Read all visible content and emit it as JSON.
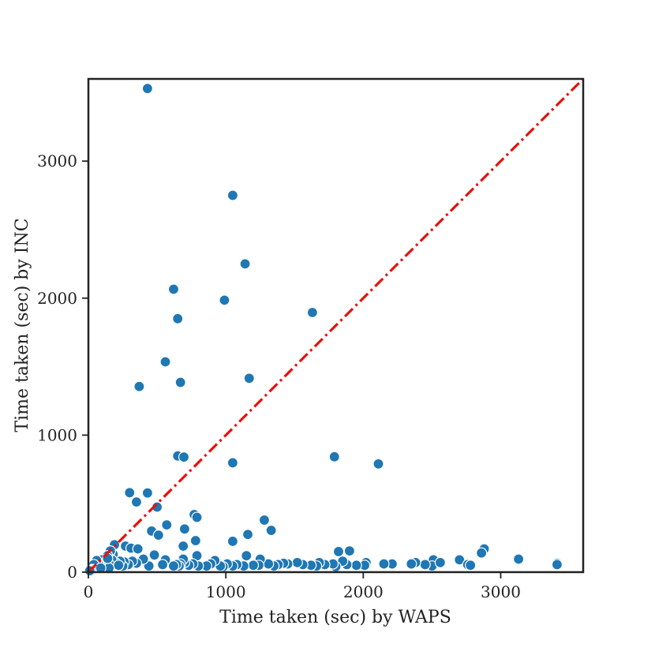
{
  "chart_data": {
    "type": "scatter",
    "title": "",
    "xlabel": "Time taken (sec) by WAPS",
    "ylabel": "Time taken (sec) by INC",
    "xlim": [
      0,
      3600
    ],
    "ylim": [
      0,
      3600
    ],
    "x_ticks": [
      0,
      1000,
      2000,
      3000
    ],
    "y_ticks": [
      0,
      1000,
      2000,
      3000
    ],
    "x_tick_labels": [
      "0",
      "1000",
      "2000",
      "3000"
    ],
    "y_tick_labels": [
      "0",
      "1000",
      "2000",
      "3000"
    ],
    "grid": false,
    "legend": "none",
    "reference_line": {
      "type": "y=x",
      "color": "#e8110b",
      "style": "dash-dot"
    },
    "point_color": "#1f77b4",
    "points": [
      [
        430,
        3530
      ],
      [
        1050,
        2750
      ],
      [
        1140,
        2250
      ],
      [
        620,
        2065
      ],
      [
        990,
        1985
      ],
      [
        650,
        1850
      ],
      [
        1630,
        1895
      ],
      [
        560,
        1535
      ],
      [
        1170,
        1415
      ],
      [
        670,
        1385
      ],
      [
        370,
        1355
      ],
      [
        650,
        848
      ],
      [
        695,
        840
      ],
      [
        1050,
        798
      ],
      [
        1790,
        842
      ],
      [
        2110,
        790
      ],
      [
        300,
        580
      ],
      [
        430,
        578
      ],
      [
        350,
        512
      ],
      [
        500,
        475
      ],
      [
        770,
        420
      ],
      [
        790,
        400
      ],
      [
        570,
        345
      ],
      [
        700,
        315
      ],
      [
        460,
        300
      ],
      [
        510,
        270
      ],
      [
        1280,
        380
      ],
      [
        1330,
        305
      ],
      [
        1160,
        275
      ],
      [
        1050,
        225
      ],
      [
        690,
        190
      ],
      [
        780,
        230
      ],
      [
        270,
        190
      ],
      [
        310,
        175
      ],
      [
        360,
        170
      ],
      [
        2880,
        170
      ],
      [
        2860,
        140
      ],
      [
        1820,
        150
      ],
      [
        1900,
        155
      ],
      [
        3130,
        95
      ],
      [
        3410,
        65
      ],
      [
        3410,
        55
      ],
      [
        2700,
        90
      ],
      [
        2760,
        55
      ],
      [
        2780,
        50
      ],
      [
        2510,
        90
      ],
      [
        2500,
        45
      ],
      [
        2560,
        70
      ],
      [
        2450,
        55
      ],
      [
        2380,
        70
      ],
      [
        2350,
        60
      ],
      [
        2210,
        60
      ],
      [
        2150,
        60
      ],
      [
        2020,
        70
      ],
      [
        2010,
        50
      ],
      [
        1950,
        50
      ],
      [
        1880,
        55
      ],
      [
        1850,
        80
      ],
      [
        1800,
        40
      ],
      [
        1780,
        60
      ],
      [
        1720,
        55
      ],
      [
        1680,
        70
      ],
      [
        1660,
        45
      ],
      [
        1620,
        50
      ],
      [
        1560,
        55
      ],
      [
        1520,
        70
      ],
      [
        1450,
        60
      ],
      [
        1420,
        65
      ],
      [
        1380,
        55
      ],
      [
        1350,
        45
      ],
      [
        1310,
        60
      ],
      [
        1250,
        95
      ],
      [
        1240,
        50
      ],
      [
        1200,
        50
      ],
      [
        1150,
        120
      ],
      [
        1130,
        45
      ],
      [
        1080,
        55
      ],
      [
        1050,
        45
      ],
      [
        1010,
        60
      ],
      [
        980,
        40
      ],
      [
        960,
        45
      ],
      [
        920,
        85
      ],
      [
        890,
        60
      ],
      [
        860,
        45
      ],
      [
        800,
        45
      ],
      [
        790,
        120
      ],
      [
        760,
        60
      ],
      [
        730,
        50
      ],
      [
        700,
        70
      ],
      [
        690,
        95
      ],
      [
        670,
        60
      ],
      [
        660,
        45
      ],
      [
        640,
        55
      ],
      [
        620,
        45
      ],
      [
        560,
        90
      ],
      [
        540,
        55
      ],
      [
        480,
        125
      ],
      [
        440,
        45
      ],
      [
        400,
        95
      ],
      [
        350,
        65
      ],
      [
        320,
        80
      ],
      [
        290,
        55
      ],
      [
        260,
        75
      ],
      [
        250,
        45
      ],
      [
        230,
        80
      ],
      [
        200,
        65
      ],
      [
        190,
        200
      ],
      [
        180,
        130
      ],
      [
        170,
        90
      ],
      [
        160,
        155
      ],
      [
        150,
        60
      ],
      [
        140,
        120
      ],
      [
        130,
        45
      ],
      [
        120,
        70
      ],
      [
        100,
        90
      ],
      [
        90,
        60
      ],
      [
        80,
        50
      ],
      [
        70,
        35
      ],
      [
        60,
        85
      ],
      [
        50,
        30
      ],
      [
        40,
        55
      ],
      [
        30,
        20
      ],
      [
        20,
        15
      ],
      [
        10,
        10
      ],
      [
        220,
        50
      ],
      [
        150,
        30
      ],
      [
        140,
        100
      ],
      [
        90,
        30
      ]
    ]
  }
}
